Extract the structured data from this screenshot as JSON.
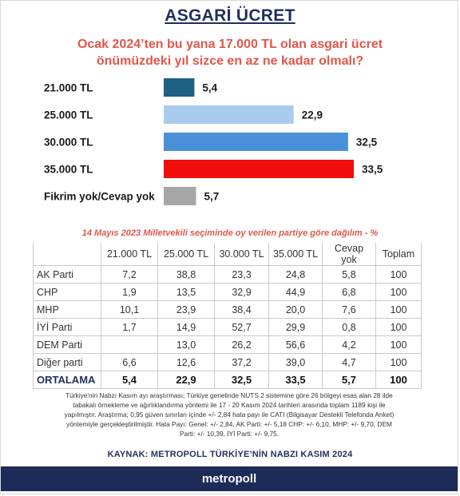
{
  "header": {
    "title": "ASGARİ ÜCRET",
    "subtitle_line1": "Ocak 2024’ten bu yana 17.000 TL olan asgari ücret",
    "subtitle_line2": "önümüzdeki yıl sizce en az ne kadar olmalı?"
  },
  "chart_data": {
    "type": "bar",
    "orientation": "horizontal",
    "categories": [
      "21.000 TL",
      "25.000 TL",
      "30.000 TL",
      "35.000 TL",
      "Fikrim yok/Cevap yok"
    ],
    "values": [
      5.4,
      22.9,
      32.5,
      33.5,
      5.7
    ],
    "value_labels": [
      "5,4",
      "22,9",
      "32,5",
      "33,5",
      "5,7"
    ],
    "colors": [
      "#1f5f84",
      "#a9cbec",
      "#4a90d9",
      "#f20d0d",
      "#a6a6a6"
    ],
    "xlim": [
      0,
      33.5
    ],
    "grid": false,
    "legend": "none"
  },
  "table": {
    "caption": "14 Mayıs 2023 Milletvekili seçiminde oy verilen partiye göre dağılım - %",
    "columns": [
      "",
      "21.000 TL",
      "25.000 TL",
      "30.000 TL",
      "35.000 TL",
      "Cevap yok",
      "Toplam"
    ],
    "rows": [
      [
        "AK Parti",
        "7,2",
        "38,8",
        "23,3",
        "24,8",
        "5,8",
        "100"
      ],
      [
        "CHP",
        "1,9",
        "13,5",
        "32,9",
        "44,9",
        "6,8",
        "100"
      ],
      [
        "MHP",
        "10,1",
        "23,9",
        "38,4",
        "20,0",
        "7,6",
        "100"
      ],
      [
        "İYİ Parti",
        "1,7",
        "14,9",
        "52,7",
        "29,9",
        "0,8",
        "100"
      ],
      [
        "DEM Parti",
        "",
        "13,0",
        "26,2",
        "56,6",
        "4,2",
        "100"
      ],
      [
        "Diğer parti",
        "6,6",
        "12,6",
        "37,2",
        "39,0",
        "4,7",
        "100"
      ]
    ],
    "average": [
      "ORTALAMA",
      "5,4",
      "22,9",
      "32,5",
      "33,5",
      "5,7",
      "100"
    ]
  },
  "note": {
    "line1": "Türkiye'nin Nabzı Kasım ayı araştırması; Türkiye genelinde NUTS 2 sistemine göre 26 bölgeyi esas alan 28 ilde",
    "line2": "tabakalı örnekleme ve ağırlıklandırma yöntemi ile 17 - 20 Kasım 2024 tarihleri arasında toplam 1189 kişi ile",
    "line3": "yapılmıştır. Araştırma; 0,95 güven sınırları içinde +/- 2,84 hata payı ile CATI (Bilgisayar Destekli Telefonda Anket)",
    "line4": "yöntemiyle gerçekleştirilmiştir. Hata Payı: Genel: +/- 2,84, AK Parti: +/- 5,18 CHP: +/- 6,10, MHP: +/- 9,70, DEM",
    "line5": "Parti: +/- 10,39, İYİ Parti: +/- 9,75."
  },
  "source": "KAYNAK: METROPOLL TÜRKİYE’NİN NABZI KASIM 2024",
  "footer": "metropoll"
}
